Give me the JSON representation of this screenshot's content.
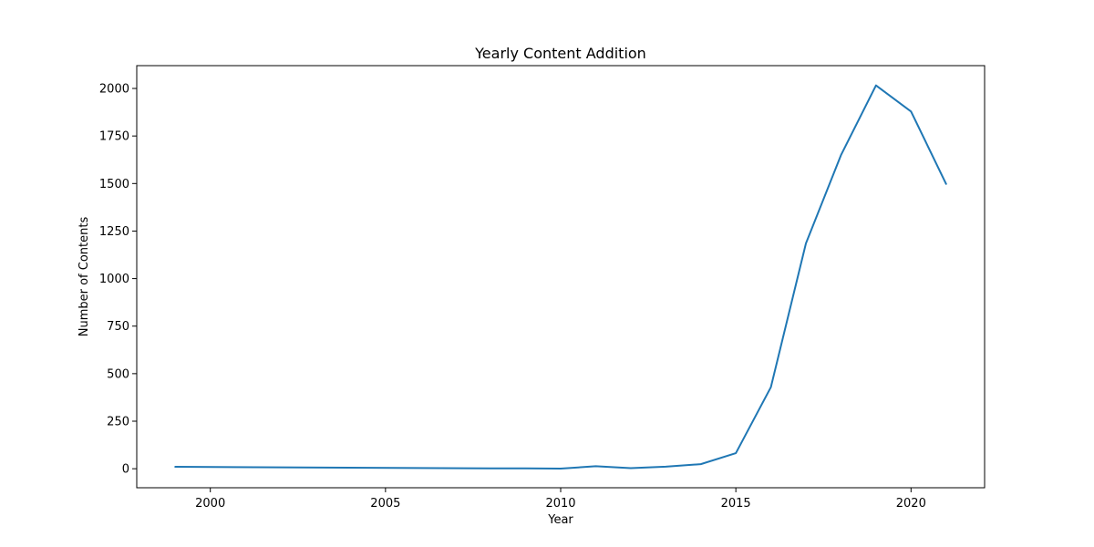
{
  "chart_data": {
    "type": "line",
    "title": "Yearly Content Addition",
    "xlabel": "Year",
    "ylabel": "Number of Contents",
    "xlim": [
      1997.9,
      2022.1
    ],
    "ylim": [
      -100,
      2120
    ],
    "xticks": [
      2000,
      2005,
      2010,
      2015,
      2020
    ],
    "yticks": [
      0,
      250,
      500,
      750,
      1000,
      1250,
      1500,
      1750,
      2000
    ],
    "grid": false,
    "series": [
      {
        "color": "#1f77b4",
        "x": [
          1999,
          2008,
          2009,
          2010,
          2011,
          2012,
          2013,
          2014,
          2015,
          2016,
          2017,
          2018,
          2019,
          2020,
          2021
        ],
        "y": [
          10,
          2,
          2,
          1,
          13,
          3,
          11,
          24,
          82,
          429,
          1185,
          1649,
          2016,
          1879,
          1498
        ]
      }
    ]
  }
}
